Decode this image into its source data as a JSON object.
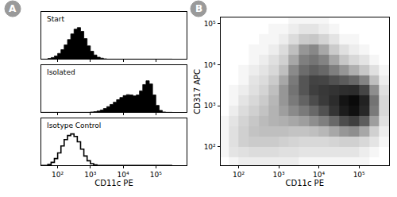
{
  "chart_data": [
    {
      "type": "histogram",
      "title": "A",
      "xlabel": "CD11c PE",
      "log": "x",
      "grid": false,
      "tick_labels": "x",
      "xlim": [
        31.6,
        870000
      ],
      "xticks": [
        {
          "value": 100,
          "label": "10²"
        },
        {
          "value": 1000,
          "label": "10³"
        },
        {
          "value": 10000,
          "label": "10⁴"
        },
        {
          "value": 100000,
          "label": "10⁵"
        }
      ],
      "ylim": [
        0,
        150
      ],
      "bins": [
        31.6,
        39.8,
        50.1,
        63.1,
        79.4,
        100,
        126,
        158,
        200,
        251,
        316,
        398,
        501,
        631,
        794,
        1000,
        1260,
        1580,
        2000,
        2510,
        3160,
        3980,
        5010,
        6310,
        7940,
        10000,
        12600,
        15800,
        20000,
        25100,
        31600,
        39800,
        50100,
        63100,
        79400,
        100000,
        126000,
        158000,
        200000,
        251000,
        316000
      ],
      "series": [
        {
          "name": "Start",
          "color": "#000000",
          "marker": "filled",
          "values": [
            0,
            0,
            2,
            5,
            10,
            18,
            30,
            45,
            62,
            80,
            95,
            100,
            88,
            65,
            42,
            25,
            13,
            6,
            3,
            1,
            0,
            0,
            0,
            0,
            0,
            0,
            0,
            0,
            0,
            0,
            0,
            0,
            0,
            0,
            0,
            0,
            0,
            0,
            0,
            0
          ]
        },
        {
          "name": "Isolated",
          "color": "#000000",
          "marker": "filled",
          "values": [
            0,
            0,
            0,
            0,
            0,
            0,
            0,
            0,
            0,
            0,
            0,
            0,
            0,
            0,
            0,
            1,
            2,
            4,
            7,
            12,
            18,
            25,
            32,
            40,
            47,
            53,
            56,
            55,
            52,
            55,
            68,
            88,
            100,
            90,
            55,
            22,
            6,
            1,
            0,
            0
          ]
        },
        {
          "name": "Isotype Control",
          "color": "#000000",
          "marker": "open",
          "values": [
            0,
            0,
            3,
            10,
            22,
            40,
            62,
            82,
            95,
            100,
            92,
            75,
            52,
            30,
            15,
            6,
            2,
            0,
            0,
            0,
            0,
            0,
            0,
            0,
            0,
            0,
            0,
            0,
            0,
            0,
            0,
            0,
            0,
            0,
            0,
            0,
            0,
            0,
            0,
            0
          ]
        }
      ]
    },
    {
      "type": "heatmap",
      "title": "B",
      "xlabel": "CD11c PE",
      "ylabel": "CD317 APC",
      "log": true,
      "grid": false,
      "xlim": [
        35,
        560000
      ],
      "ylim": [
        35,
        140000
      ],
      "xticks": [
        {
          "value": 100,
          "label": "10²"
        },
        {
          "value": 1000,
          "label": "10³"
        },
        {
          "value": 10000,
          "label": "10⁴"
        },
        {
          "value": 100000,
          "label": "10⁵"
        }
      ],
      "yticks": [
        {
          "value": 100,
          "label": "10²"
        },
        {
          "value": 1000,
          "label": "10³"
        },
        {
          "value": 10000,
          "label": "10⁴"
        },
        {
          "value": 100000,
          "label": "10⁵"
        }
      ],
      "x_bins": [
        31.6,
        56.2,
        100,
        178,
        316,
        562,
        1000,
        1780,
        3160,
        5620,
        10000,
        17800,
        31600,
        56200,
        100000,
        178000,
        316000,
        562000
      ],
      "y_bins": [
        31.6,
        56.2,
        100,
        178,
        316,
        562,
        1000,
        1780,
        3160,
        5620,
        10000,
        17800,
        31600,
        56200,
        100000,
        178000
      ],
      "cells": [
        [
          0,
          1,
          2,
          2,
          2,
          2,
          2,
          2,
          1,
          1,
          1,
          1,
          1,
          1,
          1,
          0,
          0
        ],
        [
          1,
          3,
          4,
          5,
          5,
          5,
          4,
          4,
          3,
          3,
          3,
          3,
          3,
          3,
          2,
          1,
          0
        ],
        [
          1,
          4,
          8,
          9,
          9,
          9,
          8,
          7,
          6,
          6,
          6,
          7,
          8,
          8,
          6,
          3,
          1
        ],
        [
          1,
          4,
          8,
          11,
          12,
          12,
          12,
          11,
          11,
          12,
          14,
          18,
          22,
          24,
          18,
          8,
          2
        ],
        [
          1,
          3,
          7,
          10,
          13,
          15,
          16,
          18,
          20,
          24,
          30,
          40,
          52,
          58,
          45,
          20,
          4
        ],
        [
          0,
          2,
          5,
          8,
          11,
          15,
          20,
          25,
          32,
          40,
          50,
          65,
          85,
          95,
          75,
          32,
          6
        ],
        [
          0,
          1,
          3,
          6,
          9,
          14,
          22,
          32,
          42,
          52,
          60,
          72,
          92,
          100,
          80,
          35,
          6
        ],
        [
          0,
          1,
          2,
          4,
          7,
          12,
          22,
          35,
          48,
          58,
          62,
          66,
          70,
          72,
          55,
          24,
          4
        ],
        [
          0,
          0,
          1,
          3,
          5,
          9,
          18,
          32,
          48,
          56,
          55,
          50,
          45,
          40,
          28,
          12,
          2
        ],
        [
          0,
          0,
          1,
          2,
          3,
          6,
          12,
          25,
          38,
          44,
          40,
          30,
          22,
          16,
          10,
          4,
          1
        ],
        [
          0,
          0,
          0,
          1,
          2,
          4,
          8,
          18,
          30,
          34,
          28,
          18,
          10,
          6,
          3,
          1,
          0
        ],
        [
          0,
          0,
          0,
          1,
          1,
          2,
          5,
          12,
          22,
          26,
          18,
          9,
          4,
          2,
          1,
          0,
          0
        ],
        [
          0,
          0,
          0,
          0,
          1,
          1,
          2,
          5,
          9,
          10,
          7,
          3,
          1,
          1,
          0,
          0,
          0
        ],
        [
          0,
          0,
          0,
          0,
          0,
          1,
          1,
          2,
          3,
          3,
          2,
          1,
          0,
          0,
          0,
          0,
          0
        ],
        [
          0,
          0,
          0,
          0,
          0,
          0,
          0,
          1,
          1,
          1,
          1,
          0,
          0,
          0,
          0,
          0,
          0
        ]
      ]
    }
  ]
}
